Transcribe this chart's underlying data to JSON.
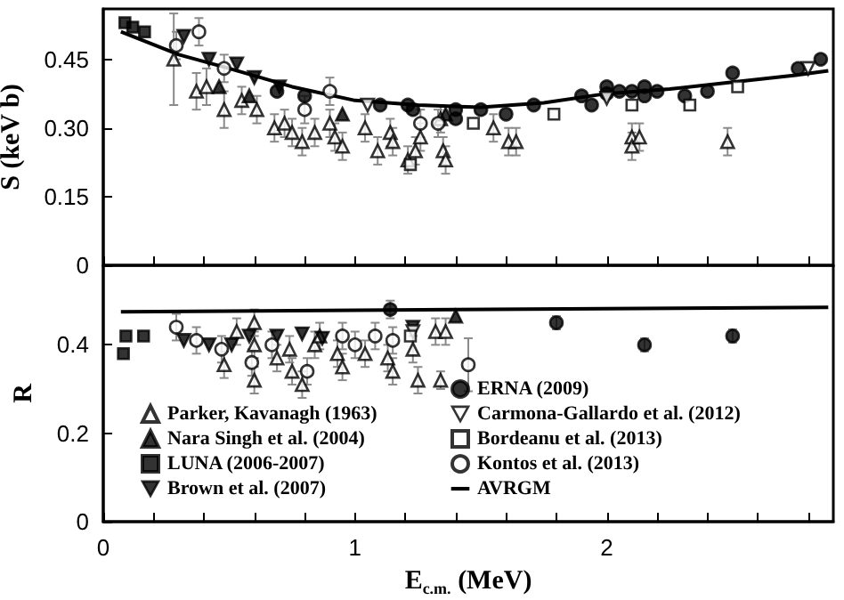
{
  "chart_data": [
    {
      "type": "scatter",
      "ylabel": "S (keV b)",
      "xlim": [
        0,
        2.9
      ],
      "ylim": [
        0,
        0.56
      ],
      "xticks": [
        0,
        {
          "value": 0.2,
          "label": null
        },
        {
          "value": 0.4,
          "label": null
        },
        {
          "value": 0.6,
          "label": null
        },
        {
          "value": 0.8,
          "label": null
        },
        1,
        {
          "value": 1.2,
          "label": null
        },
        {
          "value": 1.4,
          "label": null
        },
        {
          "value": 1.6,
          "label": null
        },
        {
          "value": 1.8,
          "label": null
        },
        2,
        {
          "value": 2.2,
          "label": null
        },
        {
          "value": 2.4,
          "label": null
        },
        {
          "value": 2.6,
          "label": null
        },
        {
          "value": 2.8,
          "label": null
        }
      ],
      "yticks": [
        0,
        0.15,
        {
          "value": 0.3,
          "label": "0.30"
        },
        0.45
      ],
      "tick_labels": "y",
      "grid": false,
      "legend": false,
      "series": [
        {
          "color": "#000000",
          "marker": "triangle-open",
          "x": [
            0.28,
            0.37,
            0.41,
            0.48,
            0.55,
            0.61,
            0.68,
            0.72,
            0.75,
            0.79,
            0.84,
            0.9,
            0.92,
            0.95,
            1.04,
            1.09,
            1.14,
            1.15,
            1.21,
            1.24,
            1.26,
            1.34,
            1.35,
            1.36,
            1.55,
            1.61,
            1.64,
            2.1,
            2.1,
            2.13,
            2.48
          ],
          "values": [
            0.45,
            0.38,
            0.39,
            0.34,
            0.36,
            0.34,
            0.3,
            0.31,
            0.29,
            0.27,
            0.29,
            0.31,
            0.28,
            0.26,
            0.3,
            0.25,
            0.29,
            0.27,
            0.23,
            0.25,
            0.28,
            0.32,
            0.25,
            0.23,
            0.3,
            0.27,
            0.27,
            0.28,
            0.26,
            0.28,
            0.27
          ],
          "errors": [
            0.1,
            0.04,
            0.04,
            0.04,
            0.03,
            0.03,
            0.03,
            0.03,
            0.03,
            0.03,
            0.03,
            0.03,
            0.03,
            0.03,
            0.03,
            0.03,
            0.03,
            0.03,
            0.03,
            0.03,
            0.03,
            0.03,
            0.03,
            0.03,
            0.03,
            0.03,
            0.03,
            0.03,
            0.03,
            0.03,
            0.03
          ]
        },
        {
          "color": "#000000",
          "marker": "triangle",
          "x": [
            0.46,
            0.58,
            0.95,
            1.36
          ],
          "values": [
            0.39,
            0.37,
            0.33,
            0.33
          ]
        },
        {
          "color": "#000000",
          "marker": "square",
          "x": [
            0.086,
            0.117,
            0.164
          ],
          "values": [
            0.53,
            0.52,
            0.51
          ]
        },
        {
          "color": "#000000",
          "marker": "triangle-down",
          "x": [
            0.32,
            0.42,
            0.53,
            0.6,
            0.7
          ],
          "values": [
            0.5,
            0.45,
            0.44,
            0.41,
            0.39
          ]
        },
        {
          "color": "#000000",
          "marker": "circle",
          "x": [
            0.69,
            0.8,
            1.1,
            1.21,
            1.23,
            1.4,
            1.4,
            1.5,
            1.6,
            1.71,
            1.9,
            1.94,
            2.0,
            2.0,
            2.05,
            2.1,
            2.15,
            2.15,
            2.2,
            2.31,
            2.4,
            2.5,
            2.76,
            2.85
          ],
          "values": [
            0.38,
            0.37,
            0.35,
            0.35,
            0.34,
            0.32,
            0.34,
            0.34,
            0.33,
            0.35,
            0.37,
            0.35,
            0.39,
            0.375,
            0.38,
            0.38,
            0.39,
            0.37,
            0.38,
            0.37,
            0.38,
            0.42,
            0.43,
            0.45
          ]
        },
        {
          "color": "#000000",
          "marker": "triangle-down-open",
          "x": [
            1.05,
            2.0,
            2.8
          ],
          "values": [
            0.35,
            0.365,
            0.43
          ]
        },
        {
          "color": "#000000",
          "marker": "square-open",
          "x": [
            1.22,
            1.47,
            1.79,
            2.1,
            2.33,
            2.52
          ],
          "values": [
            0.22,
            0.31,
            0.33,
            0.35,
            0.35,
            0.39
          ]
        },
        {
          "color": "#000000",
          "marker": "circle-open",
          "x": [
            0.29,
            0.38,
            0.48,
            0.8,
            0.9,
            1.26,
            1.33
          ],
          "values": [
            0.48,
            0.51,
            0.43,
            0.34,
            0.38,
            0.31,
            0.31
          ],
          "errors": [
            0.03,
            0.03,
            0.03,
            0.03,
            0.03,
            0.03,
            0.03
          ]
        },
        {
          "color": "#000000",
          "type": "line",
          "marker": "none",
          "x": [
            0.07,
            0.3,
            0.5,
            0.75,
            1.0,
            1.25,
            1.5,
            1.75,
            2.0,
            2.25,
            2.5,
            2.75,
            2.88
          ],
          "values": [
            0.51,
            0.46,
            0.43,
            0.39,
            0.36,
            0.35,
            0.345,
            0.355,
            0.375,
            0.385,
            0.4,
            0.415,
            0.425
          ]
        }
      ]
    },
    {
      "type": "scatter",
      "xlabel": "E$_{c.m.}$ (MeV)",
      "ylabel": "R",
      "xlim": [
        0,
        2.9
      ],
      "ylim": [
        0,
        0.58
      ],
      "xticks": [
        0,
        {
          "value": 0.2,
          "label": null
        },
        {
          "value": 0.4,
          "label": null
        },
        {
          "value": 0.6,
          "label": null
        },
        {
          "value": 0.8,
          "label": null
        },
        1,
        {
          "value": 1.2,
          "label": null
        },
        {
          "value": 1.4,
          "label": null
        },
        {
          "value": 1.6,
          "label": null
        },
        {
          "value": 1.8,
          "label": null
        },
        2,
        {
          "value": 2.2,
          "label": null
        },
        {
          "value": 2.4,
          "label": null
        },
        {
          "value": 2.6,
          "label": null
        },
        {
          "value": 2.8,
          "label": null
        }
      ],
      "yticks": [
        0,
        0.2,
        0.4
      ],
      "grid": false,
      "legend": "bottom",
      "series": [
        {
          "name": "Parker, Kavanagh (1963)",
          "color": "#000000",
          "marker": "triangle-open",
          "x": [
            0.48,
            0.53,
            0.6,
            0.6,
            0.6,
            0.69,
            0.74,
            0.75,
            0.79,
            0.84,
            0.86,
            0.93,
            0.95,
            1.04,
            1.13,
            1.15,
            1.23,
            1.25,
            1.34,
            1.32,
            1.36
          ],
          "values": [
            0.355,
            0.43,
            0.45,
            0.4,
            0.32,
            0.37,
            0.39,
            0.34,
            0.31,
            0.4,
            0.42,
            0.38,
            0.35,
            0.38,
            0.37,
            0.34,
            0.39,
            0.32,
            0.32,
            0.43,
            0.43
          ],
          "errors": [
            0.03,
            0.03,
            0.03,
            0.03,
            0.03,
            0.03,
            0.03,
            0.03,
            0.03,
            0.03,
            0.03,
            0.03,
            0.03,
            0.03,
            0.03,
            0.03,
            0.03,
            0.03,
            0.02,
            0.03,
            0.03
          ]
        },
        {
          "name": "Nara Singh et al. (2004)",
          "color": "#000000",
          "marker": "triangle",
          "x": [
            1.4
          ],
          "values": [
            0.465
          ]
        },
        {
          "name": "LUNA (2006-2007)",
          "color": "#000000",
          "marker": "square",
          "x": [
            0.08,
            0.09,
            0.16
          ],
          "values": [
            0.38,
            0.42,
            0.42
          ]
        },
        {
          "name": "Brown et al. (2007)",
          "color": "#000000",
          "marker": "triangle-down",
          "x": [
            0.32,
            0.42,
            0.51,
            0.58,
            0.69,
            0.79,
            0.87,
            1.23
          ],
          "values": [
            0.41,
            0.4,
            0.4,
            0.42,
            0.42,
            0.425,
            0.415,
            0.44
          ]
        },
        {
          "name": "ERNA (2009)",
          "color": "#000000",
          "marker": "circle",
          "x": [
            1.14,
            1.8,
            2.15,
            2.5
          ],
          "values": [
            0.48,
            0.45,
            0.4,
            0.42
          ],
          "errors": [
            0.02,
            0.015,
            0.015,
            0.015
          ]
        },
        {
          "name": "Carmona-Gallardo et al. (2012)",
          "color": "#000000",
          "marker": "triangle-down-open",
          "x": [
            1.23
          ],
          "values": [
            0.43
          ]
        },
        {
          "name": "Bordeanu et al. (2013)",
          "color": "#000000",
          "marker": "square-open",
          "x": [
            1.22
          ],
          "values": [
            0.42
          ]
        },
        {
          "name": "Kontos et al. (2013)",
          "color": "#000000",
          "marker": "circle-open",
          "x": [
            0.29,
            0.37,
            0.47,
            0.59,
            0.67,
            0.81,
            0.95,
            1.0,
            1.08,
            1.15,
            1.45
          ],
          "values": [
            0.44,
            0.41,
            0.39,
            0.36,
            0.4,
            0.34,
            0.42,
            0.4,
            0.42,
            0.41,
            0.355
          ],
          "errors": [
            0.03,
            0.03,
            0.03,
            0.03,
            0.03,
            0.03,
            0.03,
            0.03,
            0.03,
            0.03,
            0.06
          ]
        },
        {
          "name": "AVRGM",
          "color": "#000000",
          "type": "line",
          "marker": "none",
          "x": [
            0.07,
            2.88
          ],
          "values": [
            0.475,
            0.485
          ]
        }
      ]
    }
  ]
}
